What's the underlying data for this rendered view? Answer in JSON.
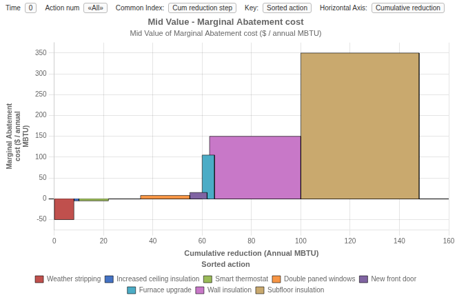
{
  "chart_data": {
    "type": "bar",
    "title": "Mid Value - Marginal Abatement cost",
    "subtitle": "Mid Value of Marginal Abatement cost ($ / annual MBTU)",
    "xlabel": "Cumulative reduction (Annual MBTU)",
    "ylabel": "Marginal Abatement\ncost ($ / annual\nMBTU)",
    "categories": [
      "Weather stripping",
      "Increased ceiling insulation",
      "Smart thermostat",
      "Double paned windows",
      "New front door",
      "Furnace upgrade",
      "Wall insulation",
      "Subfloor insulation"
    ],
    "values": [
      -50,
      -5,
      -5,
      8,
      15,
      105,
      150,
      350
    ],
    "x_start": [
      0,
      8,
      10,
      35,
      55,
      60,
      63,
      100
    ],
    "x_end": [
      8,
      10,
      22,
      55,
      62,
      65,
      100,
      148
    ],
    "colors": [
      "#c0504d",
      "#4472c4",
      "#9bbb59",
      "#f79646",
      "#8064a2",
      "#4bacc6",
      "#c878c8",
      "#c9a96e"
    ],
    "xlim": [
      0,
      160
    ],
    "xticks": [
      0,
      20,
      40,
      60,
      80,
      100,
      120,
      140,
      160
    ],
    "ylim": [
      -75,
      375
    ],
    "yticks": [
      -50,
      0,
      50,
      100,
      150,
      200,
      250,
      300,
      350
    ],
    "grid": true,
    "legend": "bottom",
    "legend_title": "Sorted action",
    "annotations": [
      "Time",
      "0",
      "Action num",
      "«All»",
      "Common Index:",
      "Cum reduction step",
      "Key:",
      "Sorted action",
      "Horizontal Axis:",
      "Cumulative reduction"
    ]
  }
}
